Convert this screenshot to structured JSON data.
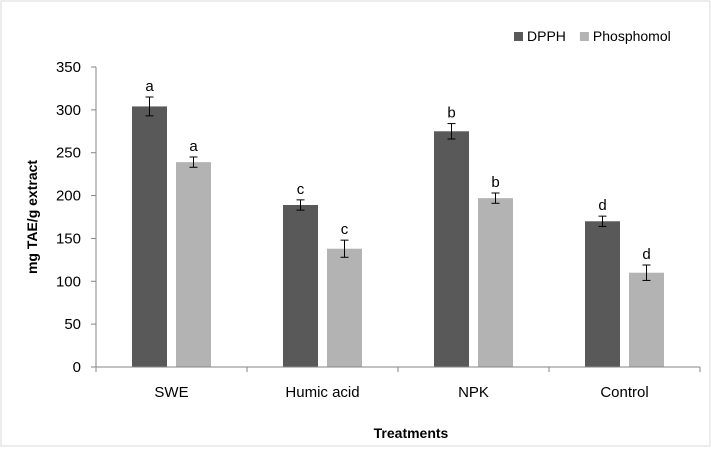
{
  "chart_data": {
    "type": "bar",
    "title": "",
    "xlabel": "Treatments",
    "ylabel": "mg TAE/g extract",
    "ylim": [
      0,
      350
    ],
    "yticks": [
      0,
      50,
      100,
      150,
      200,
      250,
      300,
      350
    ],
    "grid": false,
    "legend_position": "top-right",
    "categories": [
      "SWE",
      "Humic acid",
      "NPK",
      "Control"
    ],
    "series": [
      {
        "name": "DPPH",
        "color": "#595959",
        "values": [
          304,
          189,
          275,
          170
        ],
        "errors": [
          11,
          6,
          9,
          6
        ],
        "letters": [
          "a",
          "c",
          "b",
          "d"
        ]
      },
      {
        "name": "Phosphomol",
        "color": "#b3b3b3",
        "values": [
          239,
          138,
          197,
          110
        ],
        "errors": [
          6,
          10,
          6,
          9
        ],
        "letters": [
          "a",
          "c",
          "b",
          "d"
        ]
      }
    ]
  }
}
